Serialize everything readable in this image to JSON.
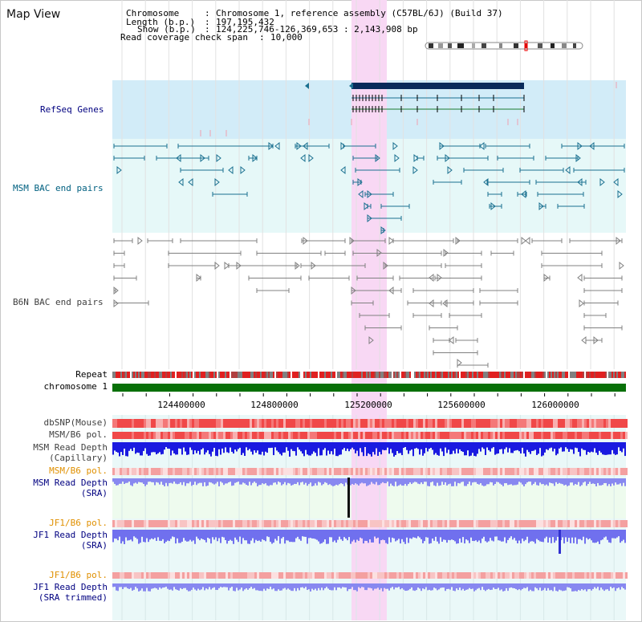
{
  "title": "Map View",
  "info": {
    "chromosome_label": "Chromosome",
    "chromosome_value": "Chromosome 1, reference assembly (C57BL/6J) (Build 37)",
    "length_label": "Length (b.p.)",
    "length_value": "197,195,432",
    "show_label": "Show (b.p.)",
    "show_value": "124,225,746-126,369,653 : 2,143,908 bp",
    "coverage_label": "Read coverage check span",
    "coverage_value": "10,000"
  },
  "tracks": {
    "refseq": "RefSeq Genes",
    "msm_bac": "MSM BAC end pairs",
    "b6n_bac": "B6N BAC end pairs",
    "repeat": "Repeat",
    "chromosome": "chromosome 1",
    "dbsnp": "dbSNP(Mouse)",
    "msm_b6_pol_1": "MSM/B6 pol.",
    "msm_depth_cap_1": "MSM Read Depth",
    "msm_depth_cap_2": "(Capillary)",
    "msm_b6_pol_2": "MSM/B6 pol.",
    "msm_depth_sra_1": "MSM Read Depth",
    "msm_depth_sra_2": "(SRA)",
    "jf1_b6_pol_1": "JF1/B6 pol.",
    "jf1_depth_sra_1": "JF1 Read Depth",
    "jf1_depth_sra_2": "(SRA)",
    "jf1_b6_pol_2": "JF1/B6 pol.",
    "jf1_depth_trim_1": "JF1 Read Depth",
    "jf1_depth_trim_2": "(SRA trimmed)"
  },
  "axis_ticks": [
    "124400000",
    "124800000",
    "125200000",
    "125600000",
    "126000000"
  ],
  "colors": {
    "refseq_bg": "#d2ecf8",
    "msm_bg": "#e6f8f8",
    "highlight": "#f8d8f4",
    "gene_dark": "#0a2a5a",
    "msm_feature": "#1a7090",
    "b6n_feature": "#808080",
    "chromosome_bar": "#087008",
    "depth_blue": "#1a1ae0",
    "depth_light": "#8888f0",
    "label_navy": "#000080",
    "label_teal": "#006080",
    "label_orange": "#e09000"
  }
}
